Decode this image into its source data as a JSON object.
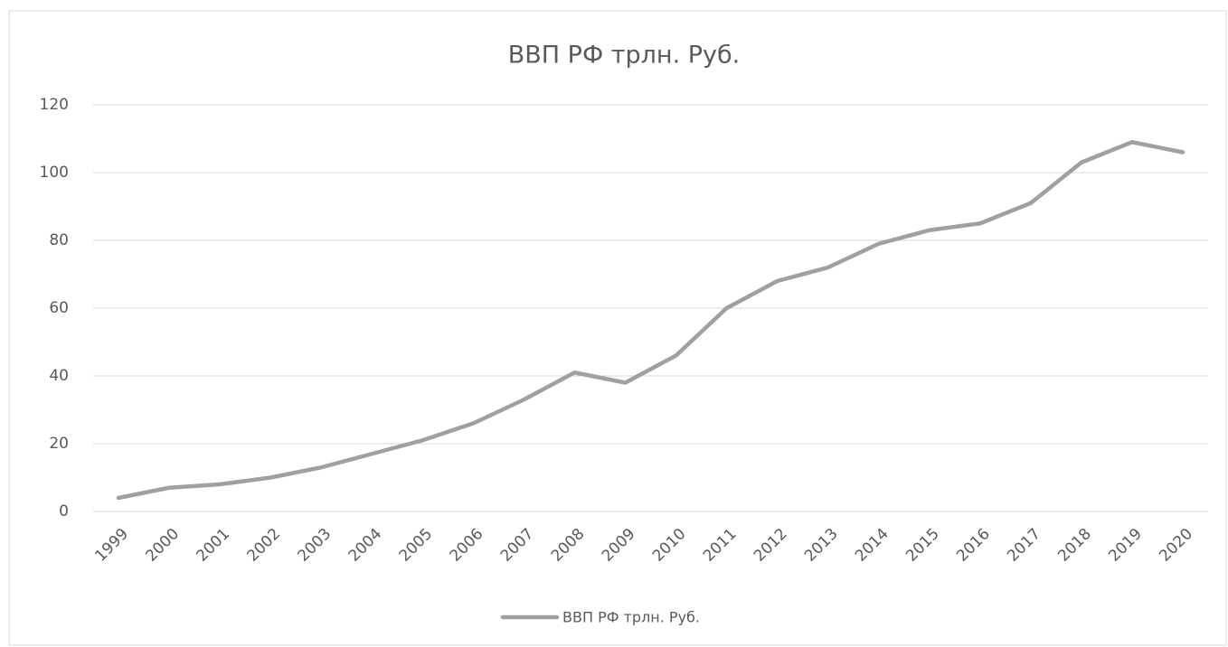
{
  "chart_data": {
    "type": "line",
    "title": "ВВП РФ трлн. Руб.",
    "categories": [
      "1999",
      "2000",
      "2001",
      "2002",
      "2003",
      "2004",
      "2005",
      "2006",
      "2007",
      "2008",
      "2009",
      "2010",
      "2011",
      "2012",
      "2013",
      "2014",
      "2015",
      "2016",
      "2017",
      "2018",
      "2019",
      "2020"
    ],
    "series": [
      {
        "name": "ВВП РФ трлн. Руб.",
        "color": "#a0a0a0",
        "values": [
          4,
          7,
          8,
          10,
          13,
          17,
          21,
          26,
          33,
          41,
          38,
          46,
          60,
          68,
          72,
          79,
          83,
          85,
          91,
          103,
          109,
          106
        ]
      }
    ],
    "ylim": [
      0,
      120
    ],
    "yticks": [
      0,
      20,
      40,
      60,
      80,
      100,
      120
    ],
    "grid": true,
    "legend": "bottom"
  }
}
